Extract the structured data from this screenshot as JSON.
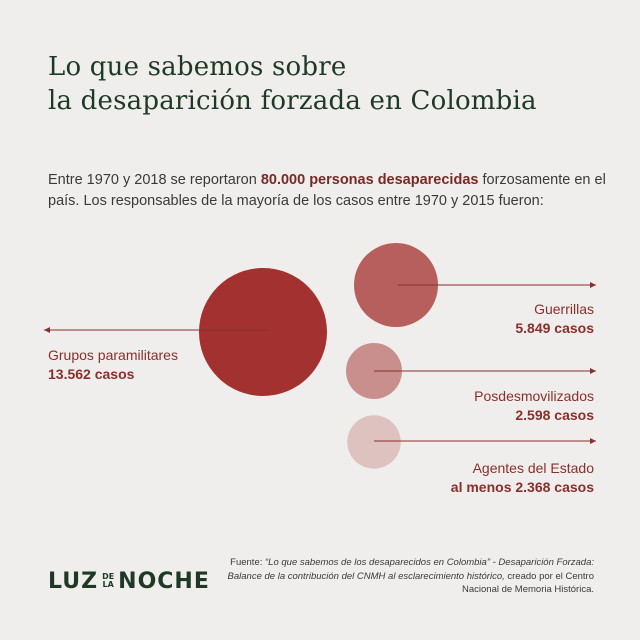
{
  "title": {
    "line1": "Lo que sabemos sobre",
    "line2": "la desaparición forzada en Colombia"
  },
  "intro": {
    "part1": "Entre 1970 y 2018 se reportaron ",
    "highlight": "80.000 personas desaparecidas",
    "part2": " forzosamente en el país. Los responsables de la mayoría de los casos entre 1970 y 2015 fueron:"
  },
  "colors": {
    "background": "#efeeec",
    "title": "#1f3a24",
    "accent": "#8a2f2b"
  },
  "chart_data": {
    "type": "bubble",
    "series": [
      {
        "name": "Grupos paramilitares",
        "value": 13562,
        "value_label": "13.562 casos",
        "color": "#a3312f"
      },
      {
        "name": "Guerrillas",
        "value": 5849,
        "value_label": "5.849 casos",
        "color": "#b75f5c"
      },
      {
        "name": "Posdesmovilizados",
        "value": 2598,
        "value_label": "2.598 casos",
        "color": "#c98f8d"
      },
      {
        "name": "Agentes del Estado",
        "value": 2368,
        "value_label": "al menos 2.368 casos",
        "color": "#ddc2c0"
      }
    ]
  },
  "logo": {
    "part1": "LUZ",
    "small_top": "DE",
    "small_bottom": "LA",
    "part2": "NOCHE"
  },
  "source": {
    "prefix": "Fuente: ",
    "title": "“Lo que sabemos de los desaparecidos en Colombia” - Desaparición Forzada: Balance de la contribución del CNMH al esclarecimiento histórico,",
    "suffix": " creado por el Centro Nacional de Memoria Histórica."
  }
}
